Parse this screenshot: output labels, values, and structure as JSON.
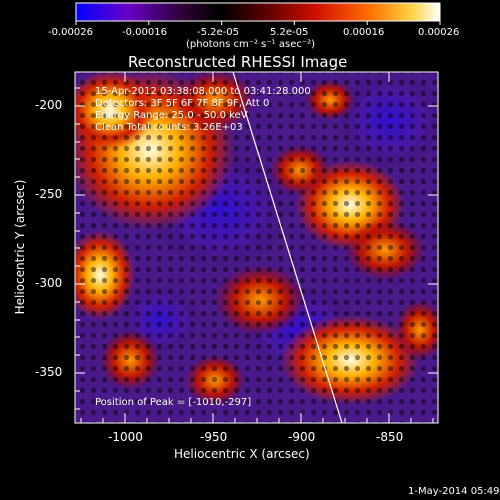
{
  "colorbar": {
    "ticks": [
      "-0.00026",
      "-0.00016",
      "-5.2e-05",
      "5.2e-05",
      "0.00016",
      "0.00026"
    ],
    "units_line": "(photons cm⁻² s⁻¹ asec⁻²)",
    "colors": [
      "#0000ff",
      "#6a00c8",
      "#2a0030",
      "#000000",
      "#5a0000",
      "#d01000",
      "#ff6a00",
      "#ffd040",
      "#ffffff"
    ]
  },
  "plot": {
    "title": "Reconstructed RHESSI Image",
    "overlay": [
      "15-Apr-2012 03:38:08.000 to 03:41:28.000",
      "Detectors: 3F 5F 6F 7F 8F 9F, Att 0",
      "Energy Range: 25.0 - 50.0 keV",
      "Clean    Total counts: 3.26E+03"
    ],
    "peak_text": "Position of Peak = [-1010,-297]",
    "xlabel": "Heliocentric X (arcsec)",
    "ylabel": "Heliocentric Y (arcsec)",
    "x_ticks": [
      "-1000",
      "-950",
      "-900",
      "-850"
    ],
    "y_ticks": [
      "-200",
      "-250",
      "-300",
      "-350"
    ]
  },
  "footer": {
    "timestamp": "1-May-2014 05:49"
  }
}
